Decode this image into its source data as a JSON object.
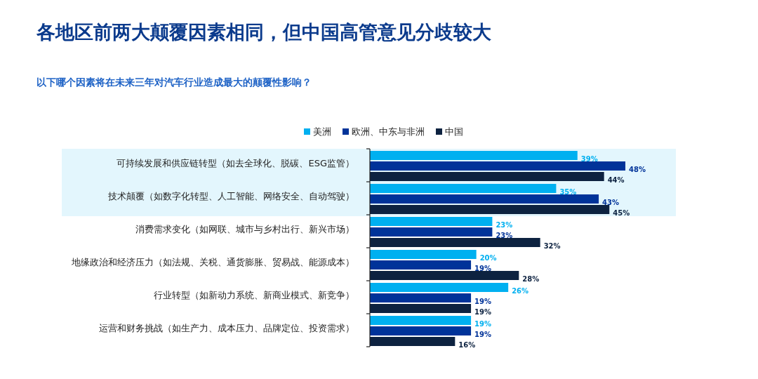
{
  "chart_data": {
    "type": "bar",
    "orientation": "horizontal",
    "title": "各地区前两大颠覆因素相同，但中国高管意见分歧较大",
    "subtitle": "以下哪个因素将在未来三年对汽车行业造成最大的颠覆性影响？",
    "categories": [
      "可持续发展和供应链转型（如去全球化、脱碳、ESG监管）",
      "技术颠覆（如数字化转型、人工智能、网络安全、自动驾驶）",
      "消费需求变化（如网联、城市与乡村出行、新兴市场）",
      "地缘政治和经济压力（如法规、关税、通货膨胀、贸易战、能源成本）",
      "行业转型（如新动力系统、新商业模式、新竞争）",
      "运营和财务挑战（如生产力、成本压力、品牌定位、投资需求）"
    ],
    "series": [
      {
        "name": "美洲",
        "color": "#00b0f0",
        "values": [
          39,
          35,
          23,
          20,
          26,
          19
        ],
        "value_labels": [
          "39%",
          "35%",
          "23%",
          "20%",
          "26%",
          "19%"
        ]
      },
      {
        "name": "欧洲、中东与非洲",
        "color": "#003399",
        "values": [
          48,
          43,
          23,
          19,
          19,
          19
        ],
        "value_labels": [
          "48%",
          "43%",
          "23%",
          "19%",
          "19%",
          "19%"
        ]
      },
      {
        "name": "中国",
        "color": "#0d2240",
        "values": [
          44,
          45,
          32,
          28,
          19,
          16
        ],
        "value_labels": [
          "44%",
          "45%",
          "32%",
          "28%",
          "19%",
          "16%"
        ]
      }
    ],
    "bands": [
      {
        "axis": "y",
        "from": "可持续发展和供应链转型（如去全球化、脱碳、ESG监管）",
        "to": "技术颠覆（如数字化转型、人工智能、网络安全、自动驾驶）",
        "color": "#e3f6fd"
      }
    ],
    "legend": "top"
  }
}
